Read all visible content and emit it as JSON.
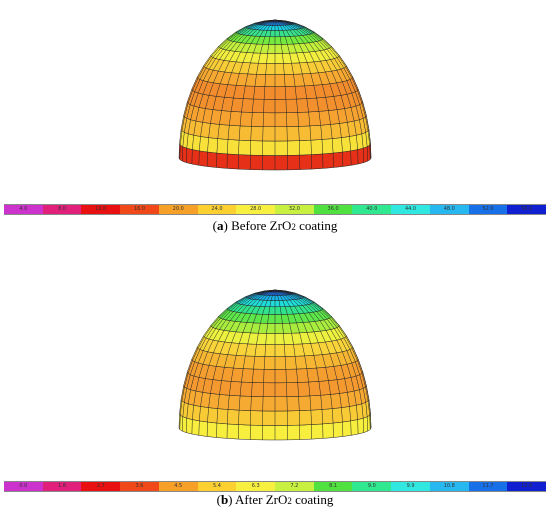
{
  "panels": [
    {
      "id": "a",
      "letter": "a",
      "caption_before": "Before ZrO",
      "caption_sub": "2",
      "caption_after": " coating",
      "colorbar_ticks": [
        "4.0",
        "8.0",
        "12.0",
        "16.0",
        "20.0",
        "24.0",
        "28.0",
        "32.0",
        "36.0",
        "40.0",
        "44.0",
        "48.0",
        "52.0",
        "56.0"
      ],
      "colorbar_colors": [
        "#cc33cc",
        "#e0207a",
        "#e81010",
        "#f04818",
        "#f7a028",
        "#fbd030",
        "#f8f040",
        "#c8f040",
        "#50e040",
        "#30e890",
        "#30e8e0",
        "#28b8f0",
        "#1870e8",
        "#1020d0"
      ],
      "band_colors": [
        "#1a2fd6",
        "#1a7ee6",
        "#1ad0e6",
        "#38e28c",
        "#74ea3e",
        "#c4ee3c",
        "#f2ee3e",
        "#f8cc36",
        "#f6a830",
        "#f38c2c",
        "#f3902e",
        "#f5a230",
        "#f7bc34",
        "#f8e23a",
        "#e63018"
      ]
    },
    {
      "id": "b",
      "letter": "b",
      "caption_before": "After ZrO",
      "caption_sub": "2",
      "caption_after": " coating",
      "colorbar_ticks": [
        "0.0",
        "1.8",
        "2.7",
        "3.6",
        "4.5",
        "5.4",
        "6.3",
        "7.2",
        "8.1",
        "9.0",
        "9.9",
        "10.8",
        "11.7",
        "12.6"
      ],
      "colorbar_colors": [
        "#cc33cc",
        "#e0207a",
        "#e81010",
        "#f04818",
        "#f7a028",
        "#fbd030",
        "#f8f040",
        "#c8f040",
        "#50e040",
        "#30e890",
        "#30e8e0",
        "#28b8f0",
        "#1870e8",
        "#1020d0"
      ],
      "band_colors": [
        "#1a2fd6",
        "#1a6ee6",
        "#18b4ea",
        "#20dcd8",
        "#30e28c",
        "#5ee64a",
        "#a8ec3e",
        "#ecf03e",
        "#f8d43a",
        "#f6b632",
        "#f59e30",
        "#f49830",
        "#f6aa32",
        "#f8ca36",
        "#f8ee3e"
      ]
    }
  ]
}
